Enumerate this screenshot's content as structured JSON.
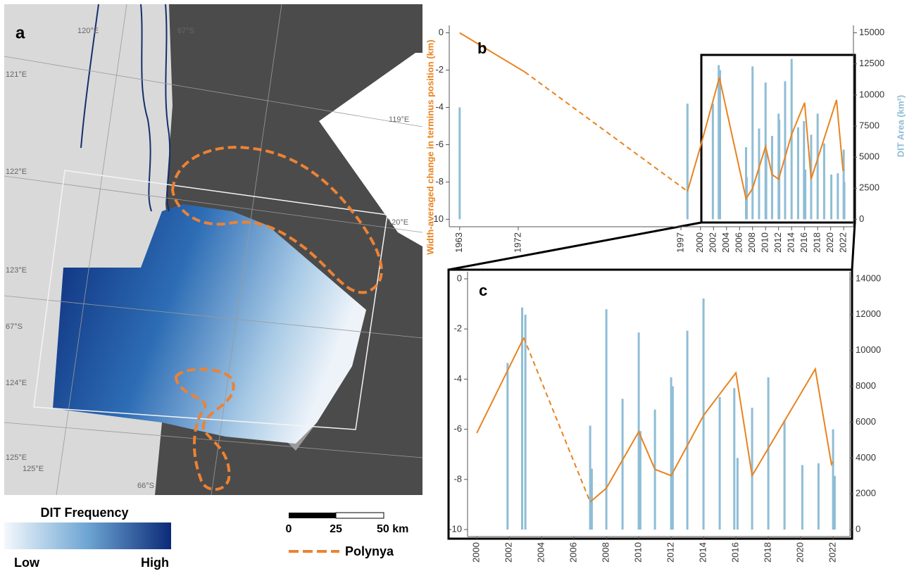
{
  "map": {
    "panel_label": "a",
    "lonlat_labels": [
      "120°E",
      "67°S",
      "121°E",
      "119°E",
      "122°E",
      "120°E",
      "123°E",
      "67°S",
      "124°E",
      "125°E",
      "125°E",
      "66°S"
    ],
    "legend_title": "DIT Frequency",
    "legend_low": "Low",
    "legend_high": "High",
    "scale_labels": [
      "0",
      "25",
      "50 km"
    ],
    "polynya_label": "Polynya"
  },
  "chart_data": [
    {
      "type": "combo",
      "panel_label": "b",
      "ylabel": "Width-averaged change in terminus position (km)",
      "y2label": "DIT Area (km²)",
      "line_color": "#e8831f",
      "bar_color": "#8fbdd6",
      "xlim": [
        1961.4,
        2023.5
      ],
      "xticks": [
        1963,
        1972,
        1997,
        2000,
        2002,
        2004,
        2006,
        2008,
        2010,
        2012,
        2014,
        2016,
        2018,
        2020,
        2022
      ],
      "ylim": [
        -10.4,
        0.4
      ],
      "yticks": [
        0,
        -2,
        -4,
        -6,
        -8,
        -10
      ],
      "y2lim": [
        -600,
        15600
      ],
      "y2ticks": [
        0,
        2500,
        5000,
        7500,
        10000,
        12500,
        15000
      ],
      "lines": [
        {
          "dashed": false,
          "x": [
            1963,
            1973
          ],
          "values": [
            0,
            -2.1
          ]
        },
        {
          "dashed": true,
          "x": [
            1973,
            1998
          ],
          "values": [
            -2.1,
            -8.5
          ]
        },
        {
          "dashed": false,
          "x": [
            1998,
            2000,
            2002.9,
            2007,
            2008,
            2010,
            2011,
            2012,
            2014,
            2016,
            2017,
            2020.9,
            2021.9,
            2022
          ],
          "values": [
            -8.5,
            -6.1,
            -2.4,
            -8.9,
            -8.35,
            -6.1,
            -7.6,
            -7.85,
            -5.45,
            -3.75,
            -7.85,
            -3.6,
            -7.4,
            -7.3
          ]
        }
      ],
      "bars": {
        "x": [
          1963,
          1998,
          2001.9,
          2002.8,
          2003,
          2007,
          2007.1,
          2008,
          2009,
          2010,
          2010.1,
          2011,
          2012,
          2012.1,
          2013,
          2014,
          2015,
          2015.9,
          2016.1,
          2017,
          2018,
          2019,
          2020.1,
          2021.1,
          2022,
          2022.1
        ],
        "values": [
          9000,
          9300,
          9300,
          12400,
          12000,
          5800,
          3400,
          12300,
          7300,
          11000,
          5500,
          6700,
          8500,
          8000,
          11100,
          12900,
          7400,
          7900,
          4000,
          6800,
          8500,
          6100,
          3600,
          3700,
          5600,
          3000
        ]
      }
    },
    {
      "type": "combo",
      "panel_label": "c",
      "line_color": "#e8831f",
      "bar_color": "#8fbdd6",
      "xlim": [
        1999.43,
        2023.04
      ],
      "xticks": [
        2000,
        2002,
        2004,
        2006,
        2008,
        2010,
        2012,
        2014,
        2016,
        2018,
        2020,
        2022
      ],
      "ylim": [
        -10.28,
        0.28
      ],
      "yticks": [
        0,
        -2,
        -4,
        -6,
        -8,
        -10
      ],
      "y2lim": [
        -390,
        14390
      ],
      "y2ticks": [
        0,
        2000,
        4000,
        6000,
        8000,
        10000,
        12000,
        14000
      ],
      "lines": [
        {
          "dashed": false,
          "x": [
            2000,
            2002.9
          ],
          "values": [
            -6.15,
            -2.35
          ]
        },
        {
          "dashed": true,
          "x": [
            2002.9,
            2007
          ],
          "values": [
            -2.35,
            -8.9
          ]
        },
        {
          "dashed": false,
          "x": [
            2007,
            2008,
            2010,
            2011,
            2012,
            2014,
            2016,
            2017,
            2020.9,
            2021.9,
            2022
          ],
          "values": [
            -8.9,
            -8.35,
            -6.1,
            -7.6,
            -7.85,
            -5.45,
            -3.75,
            -7.85,
            -3.6,
            -7.4,
            -7.3
          ]
        }
      ],
      "bars": {
        "x": [
          2001.9,
          2002.8,
          2003,
          2007,
          2007.1,
          2008,
          2009,
          2010,
          2010.1,
          2011,
          2012,
          2012.1,
          2013,
          2014,
          2015,
          2015.9,
          2016.1,
          2017,
          2018,
          2019,
          2020.1,
          2021.1,
          2022,
          2022.1
        ],
        "values": [
          9300,
          12400,
          12000,
          5800,
          3400,
          12300,
          7300,
          11000,
          5500,
          6700,
          8500,
          8000,
          11100,
          12900,
          7400,
          7900,
          4000,
          6800,
          8500,
          6100,
          3600,
          3700,
          5600,
          3000
        ]
      }
    }
  ]
}
